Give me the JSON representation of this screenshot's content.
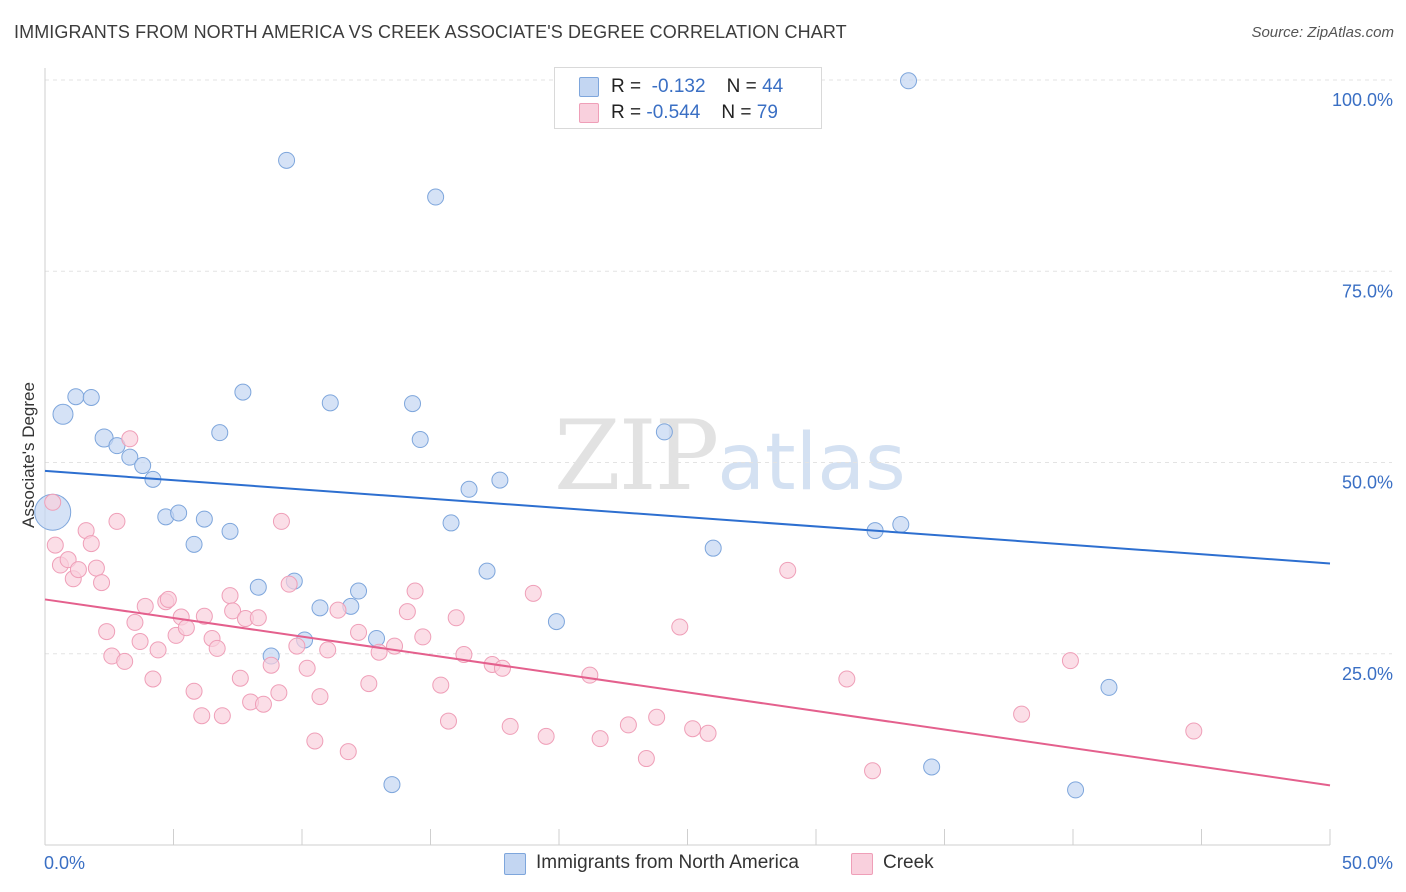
{
  "title": "IMMIGRANTS FROM NORTH AMERICA VS CREEK ASSOCIATE'S DEGREE CORRELATION CHART",
  "source": "Source: ZipAtlas.com",
  "watermark": {
    "zip": "ZIP",
    "atlas": "atlas"
  },
  "legend_top": [
    {
      "r_label": "R =",
      "r_value": "-0.132",
      "n_label": "N =",
      "n_value": "44"
    },
    {
      "r_label": "R =",
      "r_value": "-0.544",
      "n_label": "N =",
      "n_value": "79"
    }
  ],
  "legend_bottom": [
    {
      "label": "Immigrants from North America"
    },
    {
      "label": "Creek"
    }
  ],
  "colors": {
    "blue_fill": "#c3d6f2",
    "blue_stroke": "#7ea6dc",
    "blue_line": "#2d6fd0",
    "pink_fill": "#f9d0dd",
    "pink_stroke": "#ef9fb8",
    "pink_line": "#e4608d",
    "tick_label": "#3a6fc4",
    "grid": "#e3e3e3"
  },
  "chart_data": {
    "type": "scatter",
    "title": "IMMIGRANTS FROM NORTH AMERICA VS CREEK ASSOCIATE'S DEGREE CORRELATION CHART",
    "xlabel": "",
    "ylabel": "Associate's Degree",
    "xlim": [
      0,
      50
    ],
    "ylim": [
      0,
      102
    ],
    "x_tick_labels": [
      "0.0%",
      "50.0%"
    ],
    "y_tick_labels": [
      "25.0%",
      "50.0%",
      "75.0%",
      "100.0%"
    ],
    "y_ticks": [
      25,
      50,
      75,
      100
    ],
    "grid": true,
    "legend_position": "bottom",
    "series": [
      {
        "name": "Immigrants from North America",
        "color": "blue",
        "r": -0.132,
        "n": 44,
        "trend": [
          [
            0,
            48.9
          ],
          [
            50,
            36.8
          ]
        ],
        "points": [
          [
            0.3,
            43.5,
            18
          ],
          [
            0.7,
            56.3,
            10
          ],
          [
            1.2,
            58.6,
            8
          ],
          [
            1.8,
            58.5,
            8
          ],
          [
            2.3,
            53.2,
            9
          ],
          [
            2.8,
            52.2,
            8
          ],
          [
            3.3,
            50.7,
            8
          ],
          [
            3.8,
            49.6,
            8
          ],
          [
            4.2,
            47.8,
            8
          ],
          [
            4.7,
            42.9,
            8
          ],
          [
            5.2,
            43.4,
            8
          ],
          [
            5.8,
            39.3,
            8
          ],
          [
            6.2,
            42.6,
            8
          ],
          [
            6.8,
            53.9,
            8
          ],
          [
            7.2,
            41.0,
            8
          ],
          [
            7.7,
            59.2,
            8
          ],
          [
            8.3,
            33.7,
            8
          ],
          [
            8.8,
            24.7,
            8
          ],
          [
            9.4,
            89.5,
            8
          ],
          [
            9.7,
            34.5,
            8
          ],
          [
            10.1,
            26.8,
            8
          ],
          [
            10.7,
            31.0,
            8
          ],
          [
            11.1,
            57.8,
            8
          ],
          [
            11.9,
            31.2,
            8
          ],
          [
            12.2,
            33.2,
            8
          ],
          [
            12.9,
            27.0,
            8
          ],
          [
            13.5,
            7.9,
            8
          ],
          [
            14.3,
            57.7,
            8
          ],
          [
            14.6,
            53.0,
            8
          ],
          [
            15.2,
            84.7,
            8
          ],
          [
            15.8,
            42.1,
            8
          ],
          [
            16.5,
            46.5,
            8
          ],
          [
            17.2,
            35.8,
            8
          ],
          [
            17.7,
            47.7,
            8
          ],
          [
            19.9,
            29.2,
            8
          ],
          [
            24.1,
            54.0,
            8
          ],
          [
            26.0,
            38.8,
            8
          ],
          [
            32.3,
            41.1,
            8
          ],
          [
            33.3,
            41.9,
            8
          ],
          [
            33.6,
            99.9,
            8
          ],
          [
            34.5,
            10.2,
            8
          ],
          [
            40.1,
            7.2,
            8
          ],
          [
            41.4,
            20.6,
            8
          ],
          [
            28.0,
            99.8,
            8
          ]
        ]
      },
      {
        "name": "Creek",
        "color": "pink",
        "r": -0.544,
        "n": 79,
        "trend": [
          [
            0,
            32.1
          ],
          [
            50,
            7.8
          ]
        ],
        "points": [
          [
            0.3,
            44.8,
            8
          ],
          [
            0.4,
            39.2,
            8
          ],
          [
            0.6,
            36.6,
            8
          ],
          [
            0.9,
            37.3,
            8
          ],
          [
            1.1,
            34.8,
            8
          ],
          [
            1.3,
            36.0,
            8
          ],
          [
            1.6,
            41.1,
            8
          ],
          [
            1.8,
            39.4,
            8
          ],
          [
            2.0,
            36.2,
            8
          ],
          [
            2.2,
            34.3,
            8
          ],
          [
            2.4,
            27.9,
            8
          ],
          [
            2.6,
            24.7,
            8
          ],
          [
            2.8,
            42.3,
            8
          ],
          [
            3.1,
            24.0,
            8
          ],
          [
            3.3,
            53.1,
            8
          ],
          [
            3.5,
            29.1,
            8
          ],
          [
            3.7,
            26.6,
            8
          ],
          [
            3.9,
            31.2,
            8
          ],
          [
            4.2,
            21.7,
            8
          ],
          [
            4.4,
            25.5,
            8
          ],
          [
            4.7,
            31.8,
            8
          ],
          [
            4.8,
            32.1,
            8
          ],
          [
            5.1,
            27.4,
            8
          ],
          [
            5.3,
            29.8,
            8
          ],
          [
            5.5,
            28.4,
            8
          ],
          [
            5.8,
            20.1,
            8
          ],
          [
            6.1,
            16.9,
            8
          ],
          [
            6.2,
            29.9,
            8
          ],
          [
            6.5,
            27.0,
            8
          ],
          [
            6.7,
            25.7,
            8
          ],
          [
            6.9,
            16.9,
            8
          ],
          [
            7.2,
            32.6,
            8
          ],
          [
            7.3,
            30.6,
            8
          ],
          [
            7.6,
            21.8,
            8
          ],
          [
            7.8,
            29.6,
            8
          ],
          [
            8.0,
            18.7,
            8
          ],
          [
            8.3,
            29.7,
            8
          ],
          [
            8.5,
            18.4,
            8
          ],
          [
            8.8,
            23.5,
            8
          ],
          [
            9.1,
            19.9,
            8
          ],
          [
            9.2,
            42.3,
            8
          ],
          [
            9.5,
            34.1,
            8
          ],
          [
            9.8,
            26.0,
            8
          ],
          [
            10.2,
            23.1,
            8
          ],
          [
            10.5,
            13.6,
            8
          ],
          [
            10.7,
            19.4,
            8
          ],
          [
            11.0,
            25.5,
            8
          ],
          [
            11.4,
            30.7,
            8
          ],
          [
            11.8,
            12.2,
            8
          ],
          [
            12.2,
            27.8,
            8
          ],
          [
            12.6,
            21.1,
            8
          ],
          [
            13.0,
            25.2,
            8
          ],
          [
            13.6,
            26.0,
            8
          ],
          [
            14.1,
            30.5,
            8
          ],
          [
            14.4,
            33.2,
            8
          ],
          [
            14.7,
            27.2,
            8
          ],
          [
            15.4,
            20.9,
            8
          ],
          [
            15.7,
            16.2,
            8
          ],
          [
            16.0,
            29.7,
            8
          ],
          [
            16.3,
            24.9,
            8
          ],
          [
            17.4,
            23.6,
            8
          ],
          [
            17.8,
            23.1,
            8
          ],
          [
            18.1,
            15.5,
            8
          ],
          [
            19.0,
            32.9,
            8
          ],
          [
            19.5,
            14.2,
            8
          ],
          [
            21.2,
            22.2,
            8
          ],
          [
            21.6,
            13.9,
            8
          ],
          [
            22.7,
            15.7,
            8
          ],
          [
            23.4,
            11.3,
            8
          ],
          [
            23.8,
            16.7,
            8
          ],
          [
            24.7,
            28.5,
            8
          ],
          [
            25.2,
            15.2,
            8
          ],
          [
            25.8,
            14.6,
            8
          ],
          [
            28.9,
            35.9,
            8
          ],
          [
            31.2,
            21.7,
            8
          ],
          [
            32.2,
            9.7,
            8
          ],
          [
            38.0,
            17.1,
            8
          ],
          [
            39.9,
            24.1,
            8
          ],
          [
            44.7,
            14.9,
            8
          ]
        ]
      }
    ]
  }
}
